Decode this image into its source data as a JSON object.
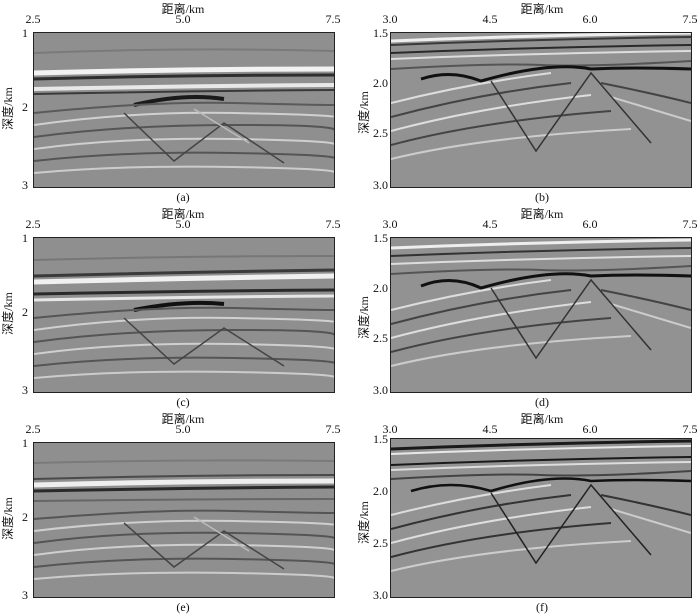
{
  "figure": {
    "panels": [
      {
        "id": "a",
        "caption": "(a)",
        "xlabel": "距离/km",
        "ylabel": "深度/km",
        "xticks": [
          "2.5",
          "5.0",
          "7.5"
        ],
        "yticks": [
          "1",
          "2",
          "3"
        ]
      },
      {
        "id": "b",
        "caption": "(b)",
        "xlabel": "距离/km",
        "ylabel": "深度/km",
        "xticks": [
          "3.0",
          "4.5",
          "6.0",
          "7.5"
        ],
        "yticks": [
          "1.5",
          "2.0",
          "2.5",
          "3.0"
        ]
      },
      {
        "id": "c",
        "caption": "(c)",
        "xlabel": "距离/km",
        "ylabel": "深度/km",
        "xticks": [
          "2.5",
          "5.0",
          "7.5"
        ],
        "yticks": [
          "1",
          "2",
          "3"
        ]
      },
      {
        "id": "d",
        "caption": "(d)",
        "xlabel": "距离/km",
        "ylabel": "深度/km",
        "xticks": [
          "3.0",
          "4.5",
          "6.0",
          "7.5"
        ],
        "yticks": [
          "1.5",
          "2.0",
          "2.5",
          "3.0"
        ]
      },
      {
        "id": "e",
        "caption": "(e)",
        "xlabel": "距离/km",
        "ylabel": "深度/km",
        "xticks": [
          "2.5",
          "5.0",
          "7.5"
        ],
        "yticks": [
          "1",
          "2",
          "3"
        ]
      },
      {
        "id": "f",
        "caption": "(f)",
        "xlabel": "距离/km",
        "ylabel": "深度/km",
        "xticks": [
          "3.0",
          "4.5",
          "6.0",
          "7.5"
        ],
        "yticks": [
          "1.5",
          "2.0",
          "2.5",
          "3.0"
        ]
      }
    ]
  }
}
